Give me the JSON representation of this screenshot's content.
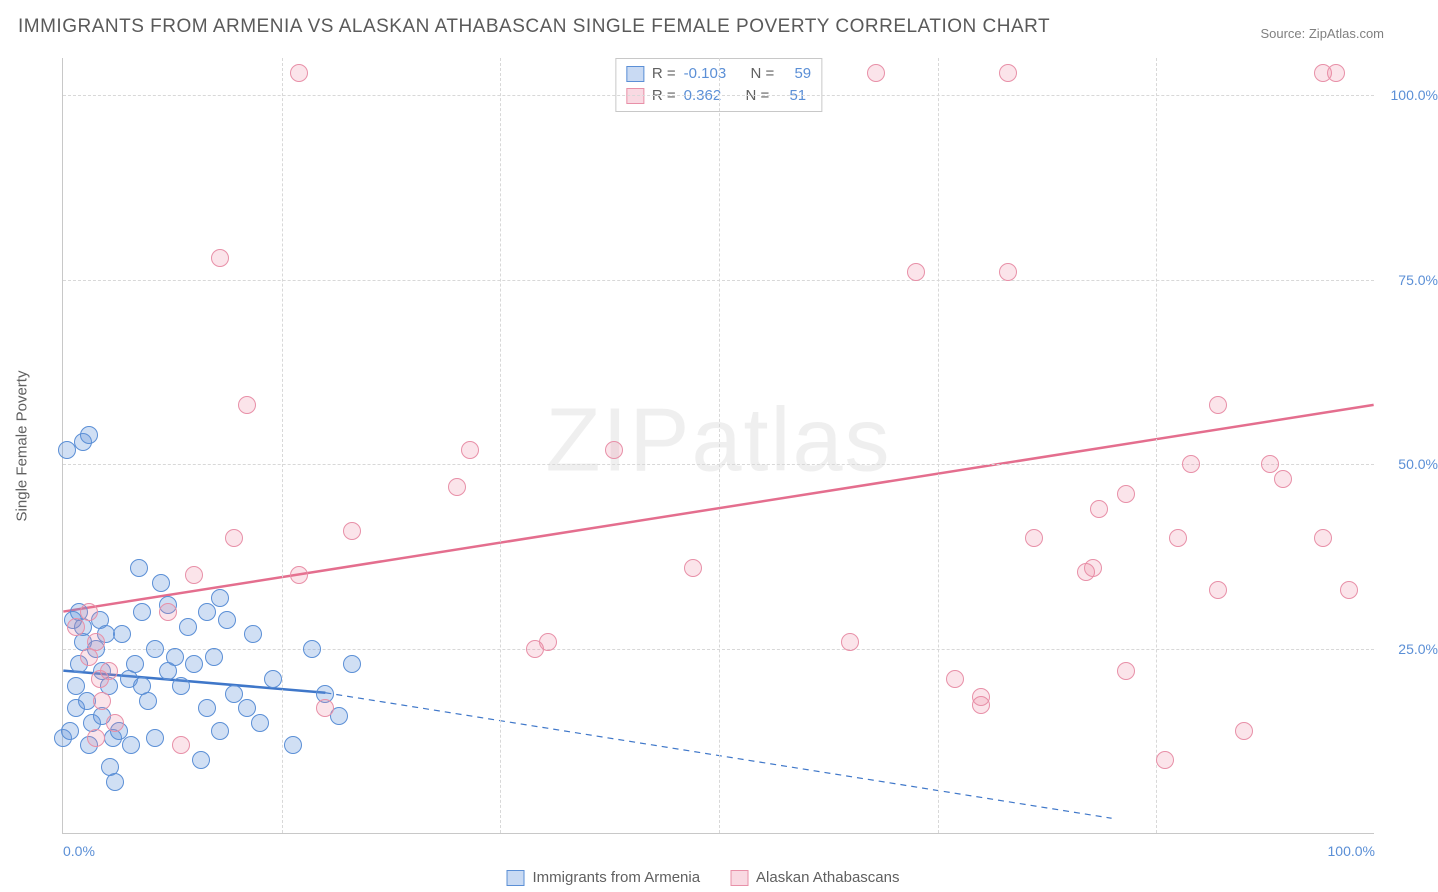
{
  "title": "IMMIGRANTS FROM ARMENIA VS ALASKAN ATHABASCAN SINGLE FEMALE POVERTY CORRELATION CHART",
  "source_label": "Source: ZipAtlas.com",
  "ylabel": "Single Female Poverty",
  "watermark": "ZIPatlas",
  "chart": {
    "type": "scatter",
    "xlim": [
      0,
      100
    ],
    "ylim": [
      0,
      105
    ],
    "x_ticks": [
      0,
      16.7,
      33.3,
      50,
      66.7,
      83.3,
      100
    ],
    "x_tick_labels": [
      "0.0%",
      "",
      "",
      "",
      "",
      "",
      "100.0%"
    ],
    "y_ticks": [
      25,
      50,
      75,
      100
    ],
    "y_tick_labels": [
      "25.0%",
      "50.0%",
      "75.0%",
      "100.0%"
    ],
    "background_color": "#ffffff",
    "grid_color": "#d8d8d8",
    "series": [
      {
        "name": "Immigrants from Armenia",
        "color_fill": "rgba(100,150,220,0.30)",
        "color_stroke": "#5b8fd6",
        "marker": "circle",
        "marker_size": 18,
        "R": -0.103,
        "N": 59,
        "trend": {
          "solid": [
            [
              0,
              22
            ],
            [
              20,
              19
            ]
          ],
          "dashed": [
            [
              20,
              19
            ],
            [
              80,
              2
            ]
          ],
          "color": "#3f77c9",
          "width_solid": 2.5,
          "width_dashed": 1.2
        },
        "points": [
          [
            0,
            13
          ],
          [
            0.5,
            14
          ],
          [
            1,
            17
          ],
          [
            1,
            20
          ],
          [
            1.2,
            23
          ],
          [
            1.5,
            26
          ],
          [
            1.5,
            28
          ],
          [
            0.8,
            29
          ],
          [
            1.2,
            30
          ],
          [
            0.3,
            52
          ],
          [
            1.5,
            53
          ],
          [
            2,
            54
          ],
          [
            1.8,
            18
          ],
          [
            2,
            12
          ],
          [
            2.2,
            15
          ],
          [
            2.5,
            25
          ],
          [
            2.8,
            29
          ],
          [
            3,
            22
          ],
          [
            3,
            16
          ],
          [
            3.3,
            27
          ],
          [
            3.5,
            20
          ],
          [
            3.6,
            9
          ],
          [
            3.8,
            13
          ],
          [
            4,
            7
          ],
          [
            4.3,
            14
          ],
          [
            4.5,
            27
          ],
          [
            5,
            21
          ],
          [
            5.2,
            12
          ],
          [
            5.5,
            23
          ],
          [
            5.8,
            36
          ],
          [
            6,
            20
          ],
          [
            6,
            30
          ],
          [
            6.5,
            18
          ],
          [
            7,
            25
          ],
          [
            7,
            13
          ],
          [
            7.5,
            34
          ],
          [
            8,
            22
          ],
          [
            8,
            31
          ],
          [
            8.5,
            24
          ],
          [
            9,
            20
          ],
          [
            9.5,
            28
          ],
          [
            10,
            23
          ],
          [
            10.5,
            10
          ],
          [
            11,
            17
          ],
          [
            11,
            30
          ],
          [
            11.5,
            24
          ],
          [
            12,
            14
          ],
          [
            12,
            32
          ],
          [
            12.5,
            29
          ],
          [
            13,
            19
          ],
          [
            14,
            17
          ],
          [
            14.5,
            27
          ],
          [
            15,
            15
          ],
          [
            16,
            21
          ],
          [
            17.5,
            12
          ],
          [
            19,
            25
          ],
          [
            20,
            19
          ],
          [
            21,
            16
          ],
          [
            22,
            23
          ]
        ]
      },
      {
        "name": "Alaskan Athabascans",
        "color_fill": "rgba(235,130,160,0.22)",
        "color_stroke": "#e890a8",
        "marker": "circle",
        "marker_size": 18,
        "R": 0.362,
        "N": 51,
        "trend": {
          "solid": [
            [
              0,
              30
            ],
            [
              100,
              58
            ]
          ],
          "color": "#e4v",
          "color_hex": "#e46e8e",
          "width_solid": 2.5
        },
        "points": [
          [
            1,
            28
          ],
          [
            2,
            24
          ],
          [
            2,
            30
          ],
          [
            2.5,
            13
          ],
          [
            2.5,
            26
          ],
          [
            3,
            18
          ],
          [
            3.5,
            22
          ],
          [
            4,
            15
          ],
          [
            8,
            30
          ],
          [
            9,
            12
          ],
          [
            10,
            35
          ],
          [
            12,
            78
          ],
          [
            13,
            40
          ],
          [
            14,
            58
          ],
          [
            18,
            103
          ],
          [
            18,
            35
          ],
          [
            20,
            17
          ],
          [
            22,
            41
          ],
          [
            30,
            47
          ],
          [
            31,
            52
          ],
          [
            36,
            25
          ],
          [
            37,
            26
          ],
          [
            42,
            52
          ],
          [
            48,
            36
          ],
          [
            60,
            26
          ],
          [
            62,
            103
          ],
          [
            65,
            76
          ],
          [
            68,
            21
          ],
          [
            70,
            17.5
          ],
          [
            70,
            18.5
          ],
          [
            72,
            103
          ],
          [
            72,
            76
          ],
          [
            74,
            40
          ],
          [
            78,
            35.5
          ],
          [
            78.5,
            36
          ],
          [
            79,
            44
          ],
          [
            81,
            46
          ],
          [
            81,
            22
          ],
          [
            84,
            10
          ],
          [
            85,
            40
          ],
          [
            86,
            50
          ],
          [
            88,
            33
          ],
          [
            88,
            58
          ],
          [
            90,
            14
          ],
          [
            92,
            50
          ],
          [
            93,
            48
          ],
          [
            96,
            103
          ],
          [
            96,
            40
          ],
          [
            97,
            103
          ],
          [
            98,
            33
          ],
          [
            2.8,
            21
          ]
        ]
      }
    ]
  },
  "legend_bottom": [
    {
      "swatch": "blue",
      "label": "Immigrants from Armenia"
    },
    {
      "swatch": "pink",
      "label": "Alaskan Athabascans"
    }
  ],
  "legend_stats_header": {
    "R": "R =",
    "N": "N ="
  }
}
